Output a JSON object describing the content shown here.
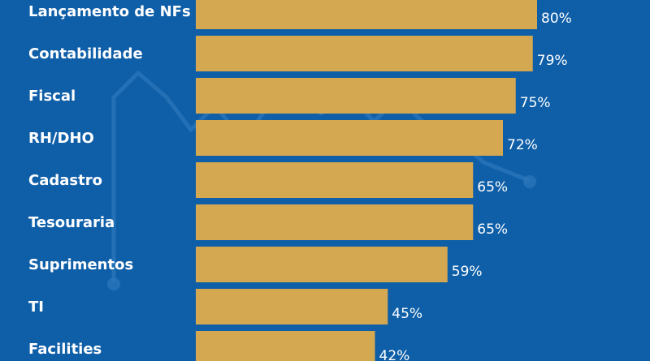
{
  "chart_data": {
    "type": "bar",
    "orientation": "horizontal",
    "categories": [
      "Lançamento de NFs",
      "Contabilidade",
      "Fiscal",
      "RH/DHO",
      "Cadastro",
      "Tesouraria",
      "Suprimentos",
      "TI",
      "Facilities"
    ],
    "values": [
      80,
      79,
      75,
      72,
      65,
      65,
      59,
      45,
      42
    ],
    "value_labels": [
      "80%",
      "79%",
      "75%",
      "72%",
      "65%",
      "65%",
      "59%",
      "45%",
      "42%"
    ],
    "title": "",
    "xlabel": "",
    "ylabel": "",
    "xlim": [
      0,
      80
    ],
    "grid": false,
    "legend": "none",
    "colors": {
      "background": "#0f5fa8",
      "bar": "#d4a751",
      "text": "#ffffff",
      "decor": "#2c76bb"
    }
  }
}
